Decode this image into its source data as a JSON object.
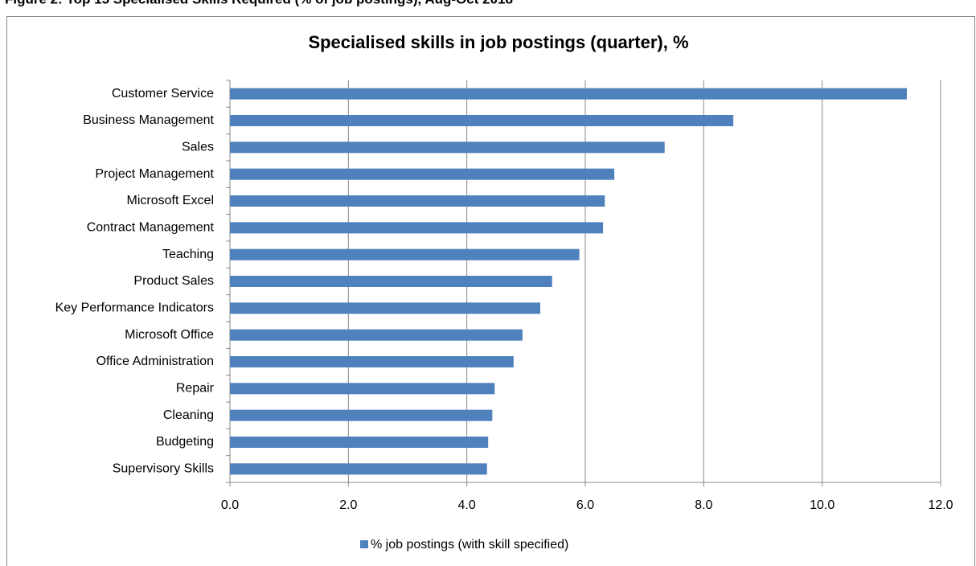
{
  "figure_caption": "Figure 2: Top 15 Specialised Skills Required (% of job postings), Aug-Oct 2018",
  "chart_data": {
    "type": "hbar",
    "title": "Specialised skills in job postings (quarter), %",
    "categories": [
      "Customer Service",
      "Business Management",
      "Sales",
      "Project Management",
      "Microsoft Excel",
      "Contract Management",
      "Teaching",
      "Product Sales",
      "Key Performance Indicators",
      "Microsoft Office",
      "Office Administration",
      "Repair",
      "Cleaning",
      "Budgeting",
      "Supervisory Skills"
    ],
    "series": [
      {
        "name": "% job postings (with skill specified)",
        "color": "#4f81bd",
        "values": [
          11.43,
          8.5,
          7.34,
          6.49,
          6.33,
          6.3,
          5.9,
          5.44,
          5.24,
          4.94,
          4.79,
          4.47,
          4.43,
          4.36,
          4.34
        ]
      }
    ],
    "xlim": [
      0,
      12
    ],
    "xticks": [
      {
        "value": 0,
        "label": "0.0"
      },
      {
        "value": 2,
        "label": "2.0"
      },
      {
        "value": 4,
        "label": "4.0"
      },
      {
        "value": 6,
        "label": "6.0"
      },
      {
        "value": 8,
        "label": "8.0"
      },
      {
        "value": 10,
        "label": "10.0"
      },
      {
        "value": 12,
        "label": "12.0"
      }
    ],
    "grid": true,
    "legend": "bottom"
  }
}
